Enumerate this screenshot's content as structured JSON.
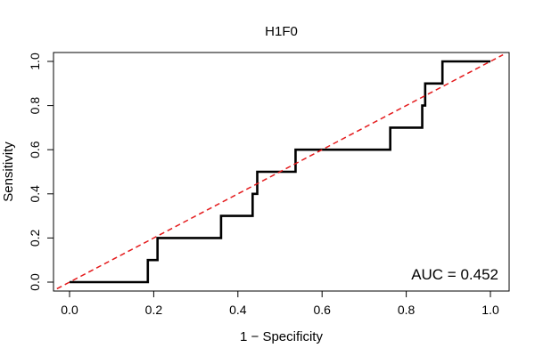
{
  "chart_data": {
    "type": "line",
    "title": "H1F0",
    "xlabel": "1 − Specificity",
    "ylabel": "Sensitivity",
    "xlim": [
      0,
      1
    ],
    "ylim": [
      0,
      1
    ],
    "x_ticks": [
      "0.0",
      "0.2",
      "0.4",
      "0.6",
      "0.8",
      "1.0"
    ],
    "y_ticks": [
      "0.0",
      "0.2",
      "0.4",
      "0.6",
      "0.8",
      "1.0"
    ],
    "grid": false,
    "annotation": "AUC = 0.452",
    "series": [
      {
        "style": "step",
        "color": "#000000",
        "points": [
          [
            0.0,
            0.0
          ],
          [
            0.186,
            0.0
          ],
          [
            0.186,
            0.1
          ],
          [
            0.209,
            0.1
          ],
          [
            0.209,
            0.2
          ],
          [
            0.36,
            0.2
          ],
          [
            0.36,
            0.3
          ],
          [
            0.435,
            0.3
          ],
          [
            0.435,
            0.4
          ],
          [
            0.446,
            0.4
          ],
          [
            0.446,
            0.5
          ],
          [
            0.537,
            0.5
          ],
          [
            0.537,
            0.6
          ],
          [
            0.762,
            0.6
          ],
          [
            0.762,
            0.7
          ],
          [
            0.838,
            0.7
          ],
          [
            0.838,
            0.8
          ],
          [
            0.845,
            0.8
          ],
          [
            0.845,
            0.9
          ],
          [
            0.886,
            0.9
          ],
          [
            0.886,
            1.0
          ],
          [
            1.0,
            1.0
          ]
        ]
      },
      {
        "style": "dashed",
        "color": "#e41a1c",
        "points": [
          [
            -0.03,
            -0.03
          ],
          [
            1.03,
            1.03
          ]
        ]
      }
    ]
  }
}
